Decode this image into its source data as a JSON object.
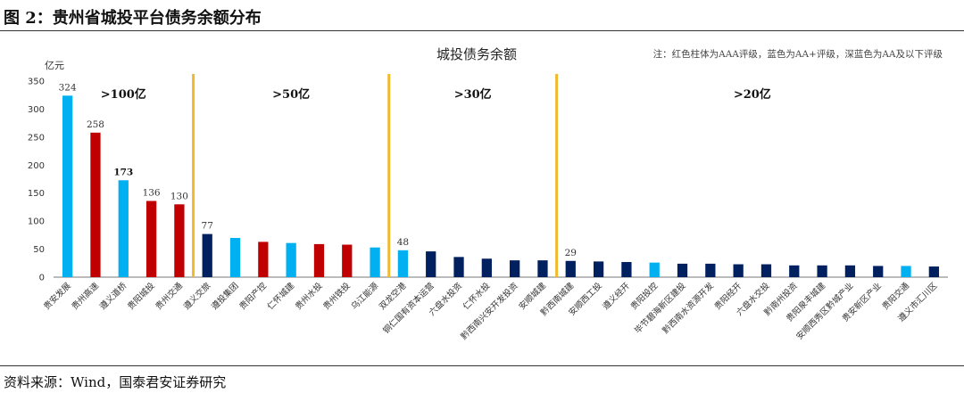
{
  "figure": {
    "title": "图 2：贵州省城投平台债务余额分布",
    "source": "资料来源：Wind，国泰君安证券研究"
  },
  "chart_data": {
    "type": "bar",
    "title": "城投债务余额",
    "note": "注：红色柱体为AAA评级，蓝色为AA+评级，深蓝色为AA及以下评级",
    "ylabel": "亿元",
    "ylim": [
      0,
      350
    ],
    "yticks": [
      0,
      50,
      100,
      150,
      200,
      250,
      300,
      350
    ],
    "grid": false,
    "colors": {
      "AAA": "#C00000",
      "AA+": "#00B0F0",
      "AA及以下": "#002060",
      "divider": "#F2B92B"
    },
    "categories": [
      "贵安发展",
      "贵州高速",
      "遵义道桥",
      "贵阳城投",
      "贵州交通",
      "遵义交旅",
      "遵投集团",
      "贵阳产控",
      "仁怀城建",
      "贵州水投",
      "贵州铁投",
      "乌江能源",
      "双龙空港",
      "铜仁国有资本运营",
      "六盘水投资",
      "仁怀水投",
      "黔西南兴安开发投资",
      "安顺城建",
      "黔西南城建",
      "安顺西工投",
      "遵义经开",
      "贵阳投控",
      "毕节碧海新区建投",
      "黔西南水资源开发",
      "贵阳经开",
      "六盘水交投",
      "黔南州投资",
      "贵阳泉丰城建",
      "安顺西秀区黔城产业",
      "贵安新区产业",
      "贵阳交通",
      "遵义市汇川区"
    ],
    "values": [
      324,
      258,
      173,
      136,
      130,
      77,
      70,
      63,
      61,
      59,
      58,
      53,
      48,
      46,
      36,
      33,
      30,
      30,
      29,
      28,
      27,
      26,
      24,
      24,
      23,
      23,
      21,
      21,
      21,
      20,
      20,
      19
    ],
    "ratings": [
      "AA+",
      "AAA",
      "AA+",
      "AAA",
      "AAA",
      "AA及以下",
      "AA+",
      "AAA",
      "AA+",
      "AAA",
      "AAA",
      "AA+",
      "AA+",
      "AA及以下",
      "AA及以下",
      "AA及以下",
      "AA及以下",
      "AA及以下",
      "AA及以下",
      "AA及以下",
      "AA及以下",
      "AA+",
      "AA及以下",
      "AA及以下",
      "AA及以下",
      "AA及以下",
      "AA及以下",
      "AA及以下",
      "AA及以下",
      "AA及以下",
      "AA+",
      "AA及以下"
    ],
    "data_labels": [
      {
        "index": 0,
        "text": "324"
      },
      {
        "index": 1,
        "text": "258"
      },
      {
        "index": 2,
        "text": "173",
        "bold": true
      },
      {
        "index": 3,
        "text": "136"
      },
      {
        "index": 4,
        "text": "130"
      },
      {
        "index": 5,
        "text": "77"
      },
      {
        "index": 12,
        "text": "48"
      },
      {
        "index": 18,
        "text": "29"
      }
    ],
    "groups": [
      {
        "label": ">100亿",
        "start": 0,
        "end": 4
      },
      {
        "label": ">50亿",
        "start": 5,
        "end": 11
      },
      {
        "label": ">30亿",
        "start": 12,
        "end": 17
      },
      {
        "label": ">20亿",
        "start": 18,
        "end": 31
      }
    ]
  }
}
